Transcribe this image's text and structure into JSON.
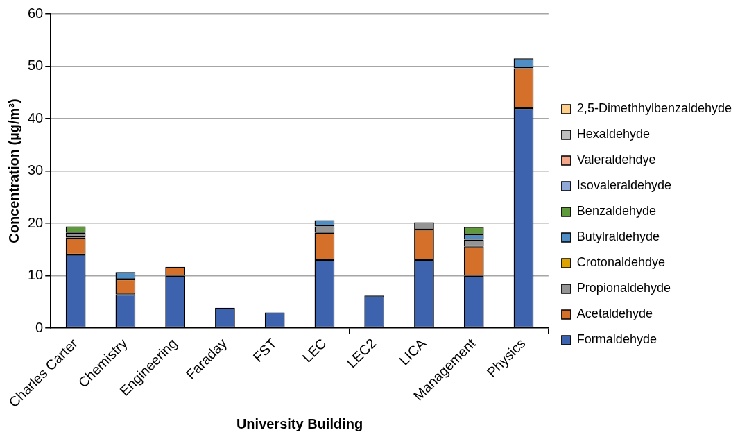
{
  "chart_data": {
    "type": "bar",
    "stacked": true,
    "xlabel": "University Building",
    "ylabel": "Concentration (µg/m³)",
    "categories": [
      "Charles Carter",
      "Chemistry",
      "Engineering",
      "Faraday",
      "FST",
      "LEC",
      "LEC2",
      "LICA",
      "Management",
      "Physics"
    ],
    "series": [
      {
        "name": "Formaldehyde",
        "color": "#3d63ae",
        "values": [
          14.0,
          6.4,
          10.0,
          3.9,
          3.0,
          13.0,
          6.2,
          13.0,
          10.0,
          42.0
        ]
      },
      {
        "name": "Acetaldehyde",
        "color": "#d4702a",
        "values": [
          3.3,
          2.9,
          1.7,
          null,
          null,
          5.2,
          null,
          5.8,
          5.6,
          7.6
        ]
      },
      {
        "name": "Propionaldehyde",
        "color": "#949494",
        "values": [
          0.9,
          null,
          null,
          null,
          null,
          1.2,
          null,
          1.4,
          1.3,
          null
        ]
      },
      {
        "name": "Crotonaldehdye",
        "color": "#dca300",
        "values": [
          null,
          null,
          null,
          null,
          null,
          null,
          null,
          null,
          null,
          null
        ]
      },
      {
        "name": "Butylraldehyde",
        "color": "#4f8ec4",
        "values": [
          null,
          1.4,
          null,
          null,
          null,
          1.2,
          null,
          null,
          1.0,
          1.9
        ]
      },
      {
        "name": "Benzaldehyde",
        "color": "#5e9a3c",
        "values": [
          1.2,
          null,
          null,
          null,
          null,
          null,
          null,
          null,
          1.4,
          null
        ]
      },
      {
        "name": "Isovaleraldehyde",
        "color": "#8fa8d8",
        "values": [
          null,
          null,
          null,
          null,
          null,
          null,
          null,
          null,
          null,
          null
        ]
      },
      {
        "name": "Valeraldehdye",
        "color": "#f4a68a",
        "values": [
          null,
          null,
          null,
          null,
          null,
          null,
          null,
          null,
          null,
          null
        ]
      },
      {
        "name": "Hexaldehyde",
        "color": "#bfbfbf",
        "values": [
          null,
          null,
          null,
          null,
          null,
          null,
          null,
          null,
          null,
          null
        ]
      },
      {
        "name": "2,5-Dimethhylbenzaldehyde",
        "color": "#fdcf8a",
        "values": [
          null,
          null,
          null,
          null,
          null,
          null,
          null,
          null,
          null,
          null
        ]
      }
    ],
    "ylim": [
      0,
      60
    ],
    "yticks": [
      0,
      10,
      20,
      30,
      40,
      50,
      60
    ],
    "grid": "y",
    "legend": "right"
  }
}
